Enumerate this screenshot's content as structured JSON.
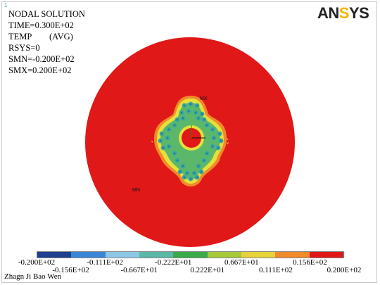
{
  "window_number": "1",
  "info": {
    "title": "NODAL SOLUTION",
    "time": "TIME=0.300E+02",
    "temp_key": "TEMP",
    "temp_avg": "(AVG)",
    "rsys": "RSYS=0",
    "smn": "SMN=-0.200E+02",
    "smx": "SMX=0.200E+02"
  },
  "logo": {
    "part1": "AN",
    "part2": "S",
    "part3": "YS"
  },
  "markers": {
    "mn": "MN",
    "mx": "MX"
  },
  "legend": {
    "colors": [
      "#1f3f8f",
      "#3a86d6",
      "#8cc8e6",
      "#5bb8a8",
      "#3aaa4a",
      "#a6c93a",
      "#e6d23a",
      "#f08a2a",
      "#e01818"
    ],
    "top_labels": [
      "-0.200E+02",
      "-0.111E+02",
      "-0.222E+01",
      "0.667E+01",
      "0.156E+02"
    ],
    "bottom_labels": [
      "-0.156E+02",
      "-0.667E+01",
      "0.222E+01",
      "0.111E+02",
      "0.200E+02"
    ]
  },
  "footer": "Zhagn Ji Bao Wen",
  "colors": {
    "hot": "#e01818",
    "orange": "#f08a2a",
    "yellow": "#e6e03a",
    "green": "#5bb86a",
    "teal": "#3aa8a0",
    "dark_teal": "#2a7a96"
  }
}
